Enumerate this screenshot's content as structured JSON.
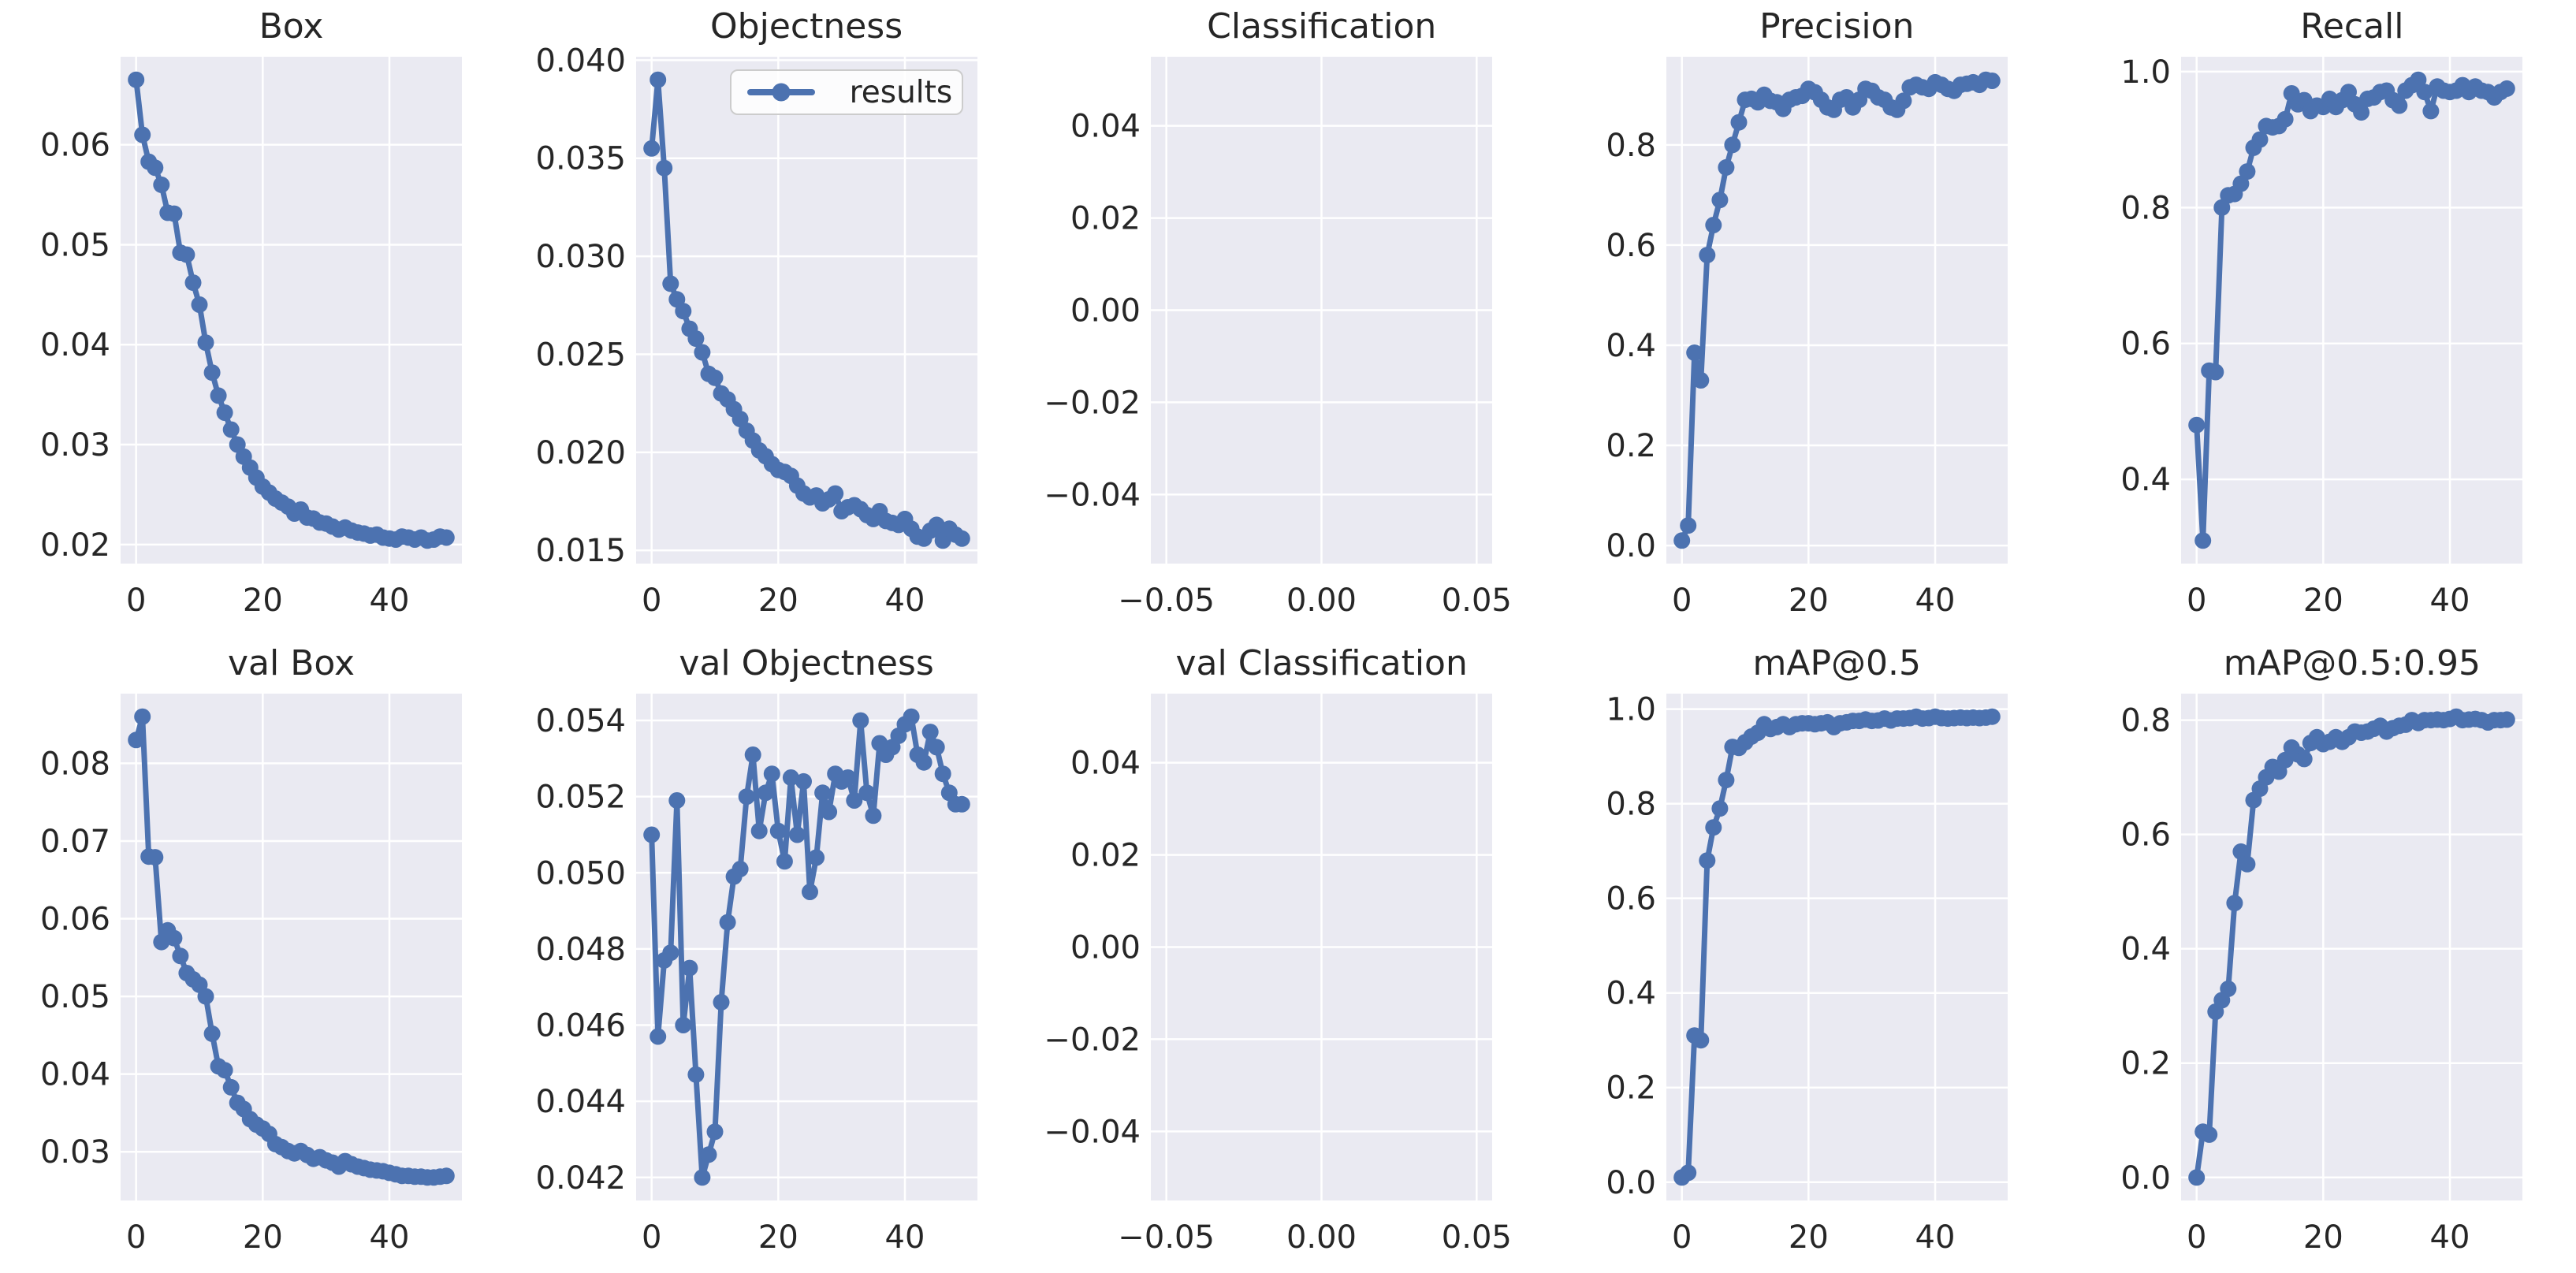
{
  "chart_data": {
    "type": "line",
    "figure_layout": {
      "rows": 2,
      "cols": 5
    },
    "legend": {
      "label": "results",
      "position": "upper-right",
      "attached_to": "Objectness"
    },
    "style": {
      "line_color": "#4c72b0",
      "axes_background": "#eaeaf2",
      "grid_color": "#ffffff",
      "text_color": "#262626",
      "figure_background": "#ffffff",
      "legend_border_color": "#cccccc"
    },
    "xlabel": "",
    "ylabel": "",
    "x": [
      0,
      1,
      2,
      3,
      4,
      5,
      6,
      7,
      8,
      9,
      10,
      11,
      12,
      13,
      14,
      15,
      16,
      17,
      18,
      19,
      20,
      21,
      22,
      23,
      24,
      25,
      26,
      27,
      28,
      29,
      30,
      31,
      32,
      33,
      34,
      35,
      36,
      37,
      38,
      39,
      40,
      41,
      42,
      43,
      44,
      45,
      46,
      47,
      48,
      49
    ],
    "subplots": [
      {
        "title": "Box",
        "empty": false,
        "xlim": [
          -2.45,
          51.45
        ],
        "xticks": {
          "values": [
            0,
            20,
            40
          ],
          "labels": [
            "0",
            "20",
            "40"
          ]
        },
        "yticks": {
          "values": [
            0.02,
            0.03,
            0.04,
            0.05,
            0.06
          ],
          "labels": [
            "0.02",
            "0.03",
            "0.04",
            "0.05",
            "0.06"
          ]
        },
        "values": [
          0.0665,
          0.061,
          0.0583,
          0.0577,
          0.056,
          0.0532,
          0.0531,
          0.0492,
          0.049,
          0.0462,
          0.044,
          0.0402,
          0.0372,
          0.0349,
          0.0332,
          0.0315,
          0.03,
          0.0288,
          0.0277,
          0.0267,
          0.0258,
          0.0252,
          0.0246,
          0.0242,
          0.0238,
          0.0231,
          0.0235,
          0.0227,
          0.0226,
          0.0222,
          0.0221,
          0.0218,
          0.0215,
          0.0217,
          0.0214,
          0.0212,
          0.0211,
          0.0209,
          0.021,
          0.0207,
          0.0206,
          0.0205,
          0.0208,
          0.0207,
          0.0205,
          0.0207,
          0.0204,
          0.0205,
          0.0208,
          0.0207
        ]
      },
      {
        "title": "Objectness",
        "empty": false,
        "show_legend": true,
        "xlim": [
          -2.45,
          51.45
        ],
        "xticks": {
          "values": [
            0,
            20,
            40
          ],
          "labels": [
            "0",
            "20",
            "40"
          ]
        },
        "yticks": {
          "values": [
            0.015,
            0.02,
            0.025,
            0.03,
            0.035,
            0.04
          ],
          "labels": [
            "0.015",
            "0.020",
            "0.025",
            "0.030",
            "0.035",
            "0.040"
          ]
        },
        "values": [
          0.0355,
          0.039,
          0.0345,
          0.0286,
          0.0278,
          0.0272,
          0.0263,
          0.0258,
          0.0251,
          0.024,
          0.0238,
          0.023,
          0.0227,
          0.0222,
          0.0217,
          0.0211,
          0.0206,
          0.0201,
          0.0198,
          0.0194,
          0.0191,
          0.019,
          0.0188,
          0.0183,
          0.0179,
          0.0177,
          0.0178,
          0.0174,
          0.0176,
          0.0179,
          0.017,
          0.0172,
          0.0173,
          0.0171,
          0.0168,
          0.0166,
          0.017,
          0.0165,
          0.0164,
          0.0163,
          0.0166,
          0.0161,
          0.0157,
          0.0156,
          0.016,
          0.0163,
          0.0155,
          0.0161,
          0.0158,
          0.0156
        ]
      },
      {
        "title": "Classification",
        "empty": true,
        "xlim": [
          -0.055,
          0.055
        ],
        "ylim": [
          -0.055,
          0.055
        ],
        "xticks": {
          "values": [
            -0.05,
            0.0,
            0.05
          ],
          "labels": [
            "−0.05",
            "0.00",
            "0.05"
          ]
        },
        "yticks": {
          "values": [
            -0.04,
            -0.02,
            0.0,
            0.02,
            0.04
          ],
          "labels": [
            "−0.04",
            "−0.02",
            "0.00",
            "0.02",
            "0.04"
          ]
        }
      },
      {
        "title": "Precision",
        "empty": false,
        "xlim": [
          -2.45,
          51.45
        ],
        "xticks": {
          "values": [
            0,
            20,
            40
          ],
          "labels": [
            "0",
            "20",
            "40"
          ]
        },
        "yticks": {
          "values": [
            0.0,
            0.2,
            0.4,
            0.6,
            0.8
          ],
          "labels": [
            "0.0",
            "0.2",
            "0.4",
            "0.6",
            "0.8"
          ]
        },
        "values": [
          0.01,
          0.04,
          0.385,
          0.33,
          0.58,
          0.64,
          0.69,
          0.755,
          0.8,
          0.845,
          0.89,
          0.892,
          0.885,
          0.9,
          0.888,
          0.885,
          0.872,
          0.89,
          0.895,
          0.898,
          0.912,
          0.905,
          0.89,
          0.875,
          0.87,
          0.89,
          0.895,
          0.875,
          0.89,
          0.912,
          0.908,
          0.895,
          0.89,
          0.875,
          0.87,
          0.888,
          0.915,
          0.92,
          0.915,
          0.912,
          0.925,
          0.92,
          0.912,
          0.908,
          0.92,
          0.922,
          0.925,
          0.92,
          0.93,
          0.928
        ]
      },
      {
        "title": "Recall",
        "empty": false,
        "xlim": [
          -2.45,
          51.45
        ],
        "xticks": {
          "values": [
            0,
            20,
            40
          ],
          "labels": [
            "0",
            "20",
            "40"
          ]
        },
        "yticks": {
          "values": [
            0.4,
            0.6,
            0.8,
            1.0
          ],
          "labels": [
            "0.4",
            "0.6",
            "0.8",
            "1.0"
          ]
        },
        "values": [
          0.48,
          0.31,
          0.56,
          0.558,
          0.8,
          0.818,
          0.82,
          0.835,
          0.853,
          0.888,
          0.9,
          0.92,
          0.918,
          0.92,
          0.93,
          0.968,
          0.952,
          0.958,
          0.942,
          0.95,
          0.948,
          0.96,
          0.948,
          0.958,
          0.97,
          0.952,
          0.94,
          0.96,
          0.962,
          0.97,
          0.972,
          0.958,
          0.95,
          0.972,
          0.98,
          0.988,
          0.97,
          0.942,
          0.978,
          0.972,
          0.97,
          0.972,
          0.98,
          0.97,
          0.978,
          0.972,
          0.97,
          0.962,
          0.97,
          0.975
        ]
      },
      {
        "title": "val Box",
        "empty": false,
        "xlim": [
          -2.45,
          51.45
        ],
        "xticks": {
          "values": [
            0,
            20,
            40
          ],
          "labels": [
            "0",
            "20",
            "40"
          ]
        },
        "yticks": {
          "values": [
            0.03,
            0.04,
            0.05,
            0.06,
            0.07,
            0.08
          ],
          "labels": [
            "0.03",
            "0.04",
            "0.05",
            "0.06",
            "0.07",
            "0.08"
          ]
        },
        "values": [
          0.083,
          0.086,
          0.068,
          0.0679,
          0.057,
          0.0585,
          0.0575,
          0.0552,
          0.053,
          0.0522,
          0.0515,
          0.05,
          0.0452,
          0.041,
          0.0405,
          0.0383,
          0.0363,
          0.0355,
          0.0342,
          0.0335,
          0.033,
          0.0323,
          0.031,
          0.0306,
          0.0301,
          0.0298,
          0.0301,
          0.0296,
          0.0291,
          0.0293,
          0.0289,
          0.0286,
          0.0281,
          0.0288,
          0.0284,
          0.0281,
          0.0279,
          0.0277,
          0.0276,
          0.0275,
          0.0273,
          0.0271,
          0.0269,
          0.0269,
          0.0268,
          0.0268,
          0.0267,
          0.0267,
          0.0268,
          0.0269
        ]
      },
      {
        "title": "val Objectness",
        "empty": false,
        "xlim": [
          -2.45,
          51.45
        ],
        "xticks": {
          "values": [
            0,
            20,
            40
          ],
          "labels": [
            "0",
            "20",
            "40"
          ]
        },
        "yticks": {
          "values": [
            0.042,
            0.044,
            0.046,
            0.048,
            0.05,
            0.052,
            0.054
          ],
          "labels": [
            "0.042",
            "0.044",
            "0.046",
            "0.048",
            "0.050",
            "0.052",
            "0.054"
          ]
        },
        "values": [
          0.051,
          0.0457,
          0.0477,
          0.0479,
          0.0519,
          0.046,
          0.0475,
          0.0447,
          0.042,
          0.0426,
          0.0432,
          0.0466,
          0.0487,
          0.0499,
          0.0501,
          0.052,
          0.0531,
          0.0511,
          0.0521,
          0.0526,
          0.0511,
          0.0503,
          0.0525,
          0.051,
          0.0524,
          0.0495,
          0.0504,
          0.0521,
          0.0516,
          0.0526,
          0.0524,
          0.0525,
          0.0519,
          0.054,
          0.0521,
          0.0515,
          0.0534,
          0.0531,
          0.0533,
          0.0536,
          0.0539,
          0.0541,
          0.0531,
          0.0529,
          0.0537,
          0.0533,
          0.0526,
          0.0521,
          0.0518,
          0.0518
        ]
      },
      {
        "title": "val Classification",
        "empty": true,
        "xlim": [
          -0.055,
          0.055
        ],
        "ylim": [
          -0.055,
          0.055
        ],
        "xticks": {
          "values": [
            -0.05,
            0.0,
            0.05
          ],
          "labels": [
            "−0.05",
            "0.00",
            "0.05"
          ]
        },
        "yticks": {
          "values": [
            -0.04,
            -0.02,
            0.0,
            0.02,
            0.04
          ],
          "labels": [
            "−0.04",
            "−0.02",
            "0.00",
            "0.02",
            "0.04"
          ]
        }
      },
      {
        "title": "mAP@0.5",
        "empty": false,
        "xlim": [
          -2.45,
          51.45
        ],
        "xticks": {
          "values": [
            0,
            20,
            40
          ],
          "labels": [
            "0",
            "20",
            "40"
          ]
        },
        "yticks": {
          "values": [
            0.0,
            0.2,
            0.4,
            0.6,
            0.8,
            1.0
          ],
          "labels": [
            "0.0",
            "0.2",
            "0.4",
            "0.6",
            "0.8",
            "1.0"
          ]
        },
        "values": [
          0.01,
          0.02,
          0.31,
          0.3,
          0.68,
          0.75,
          0.79,
          0.85,
          0.92,
          0.918,
          0.93,
          0.942,
          0.95,
          0.968,
          0.958,
          0.962,
          0.968,
          0.962,
          0.968,
          0.97,
          0.97,
          0.968,
          0.97,
          0.972,
          0.962,
          0.97,
          0.972,
          0.975,
          0.975,
          0.978,
          0.975,
          0.976,
          0.98,
          0.976,
          0.98,
          0.98,
          0.981,
          0.984,
          0.98,
          0.981,
          0.984,
          0.981,
          0.98,
          0.981,
          0.982,
          0.981,
          0.982,
          0.981,
          0.982,
          0.984
        ]
      },
      {
        "title": "mAP@0.5:0.95",
        "empty": false,
        "xlim": [
          -2.45,
          51.45
        ],
        "xticks": {
          "values": [
            0,
            20,
            40
          ],
          "labels": [
            "0",
            "20",
            "40"
          ]
        },
        "yticks": {
          "values": [
            0.0,
            0.2,
            0.4,
            0.6,
            0.8
          ],
          "labels": [
            "0.0",
            "0.2",
            "0.4",
            "0.6",
            "0.8"
          ]
        },
        "values": [
          0.0,
          0.08,
          0.075,
          0.29,
          0.31,
          0.33,
          0.48,
          0.57,
          0.548,
          0.66,
          0.68,
          0.7,
          0.718,
          0.71,
          0.73,
          0.752,
          0.74,
          0.732,
          0.76,
          0.77,
          0.758,
          0.762,
          0.77,
          0.762,
          0.77,
          0.78,
          0.778,
          0.78,
          0.785,
          0.79,
          0.78,
          0.786,
          0.79,
          0.792,
          0.8,
          0.795,
          0.8,
          0.8,
          0.801,
          0.8,
          0.802,
          0.806,
          0.8,
          0.801,
          0.802,
          0.8,
          0.796,
          0.8,
          0.8,
          0.801
        ]
      }
    ]
  }
}
